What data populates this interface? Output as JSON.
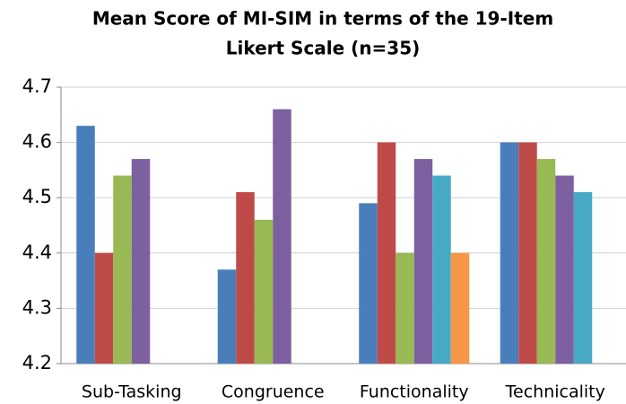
{
  "chart_data": {
    "type": "bar",
    "title": [
      "Mean Score of MI-SIM in terms of the 19-Item",
      "Likert Scale (n=35)"
    ],
    "categories": [
      "Sub-Tasking",
      "Congruence",
      "Functionality",
      "Technicality"
    ],
    "series": [
      {
        "color": "#4a7ebb",
        "values": [
          4.63,
          4.37,
          4.49,
          4.6
        ]
      },
      {
        "color": "#be4b48",
        "values": [
          4.4,
          4.51,
          4.6,
          4.6
        ]
      },
      {
        "color": "#98b954",
        "values": [
          4.54,
          4.46,
          4.4,
          4.57
        ]
      },
      {
        "color": "#7d60a0",
        "values": [
          4.57,
          4.66,
          4.57,
          4.54
        ]
      },
      {
        "color": "#46aac5",
        "values": [
          null,
          null,
          4.54,
          4.51
        ]
      },
      {
        "color": "#f79646",
        "values": [
          null,
          null,
          4.4,
          null
        ]
      }
    ],
    "ylim": [
      4.2,
      4.7
    ],
    "yticks": [
      4.2,
      4.3,
      4.4,
      4.5,
      4.6,
      4.7
    ],
    "grid": true
  }
}
